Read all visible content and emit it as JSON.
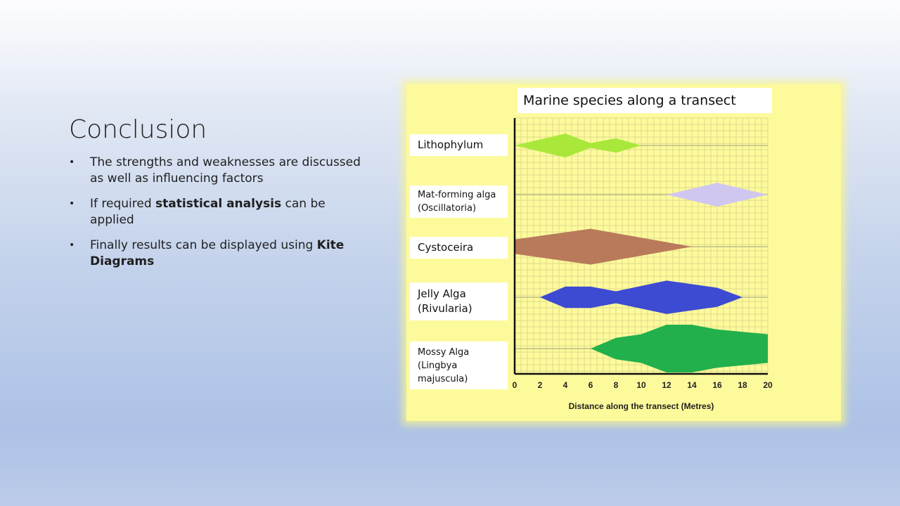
{
  "slide": {
    "title": "Conclusion",
    "bullets": [
      {
        "parts": [
          "The strengths and weaknesses are discussed as well as influencing factors"
        ]
      },
      {
        "parts": [
          "If required ",
          "statistical analysis",
          " can be applied"
        ]
      },
      {
        "parts": [
          "Finally results can be displayed using ",
          "Kite Diagrams"
        ]
      }
    ],
    "bullet_symbol": "•"
  },
  "chart_data": {
    "type": "kite",
    "title": "Marine species along a transect",
    "xlabel": "Distance along the transect (Metres)",
    "xlim": [
      0,
      20
    ],
    "xticks": [
      "0",
      "2",
      "4",
      "6",
      "8",
      "10",
      "12",
      "14",
      "16",
      "18",
      "20"
    ],
    "grid": true,
    "background_color": "#fdfa9c",
    "species": [
      {
        "label_lines": [
          "Lithophylum"
        ],
        "color": "#a9e83a",
        "x": [
          0,
          4,
          6,
          8,
          10
        ],
        "halfwidth": [
          0,
          1.0,
          0.2,
          0.6,
          0
        ]
      },
      {
        "label_lines": [
          "Mat-forming alga",
          "(Oscillatoria)"
        ],
        "color": "#d0c7f0",
        "x": [
          12,
          16,
          20
        ],
        "halfwidth": [
          0,
          1.0,
          0
        ]
      },
      {
        "label_lines": [
          "Cystoceira"
        ],
        "color": "#b87a5a",
        "x": [
          0,
          6,
          14
        ],
        "halfwidth": [
          0.6,
          1.5,
          0
        ]
      },
      {
        "label_lines": [
          "Jelly Alga",
          "(Rivularia)"
        ],
        "color": "#3d4bd2",
        "x": [
          2,
          4,
          6,
          8,
          12,
          16,
          18
        ],
        "halfwidth": [
          0,
          0.9,
          0.9,
          0.5,
          1.4,
          0.8,
          0
        ]
      },
      {
        "label_lines": [
          "Mossy Alga",
          "(Lingbya",
          "majuscula)"
        ],
        "color": "#21b04b",
        "x": [
          6,
          8,
          10,
          12,
          14,
          16,
          20
        ],
        "halfwidth": [
          0,
          0.9,
          1.2,
          2.0,
          2.0,
          1.6,
          1.2
        ]
      }
    ]
  }
}
